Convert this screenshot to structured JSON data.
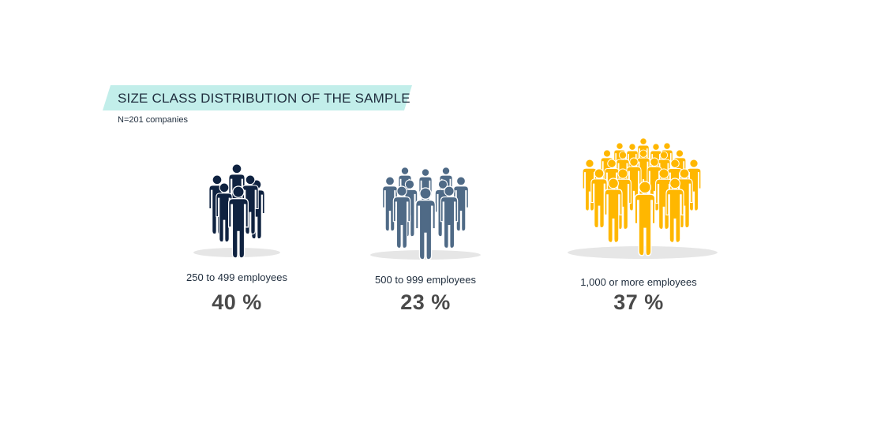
{
  "title": "SIZE CLASS DISTRIBUTION OF THE SAMPLE",
  "subtitle": "N=201 companies",
  "title_banner_color": "#c2eeea",
  "chart_data": {
    "type": "pictograph",
    "title": "SIZE CLASS DISTRIBUTION OF THE SAMPLE",
    "subtitle": "N=201 companies",
    "categories": [
      "250 to 499 employees",
      "500 to 999 employees",
      "1,000 or more employees"
    ],
    "values": [
      40,
      23,
      37
    ],
    "value_labels": [
      "40 %",
      "23 %",
      "37 %"
    ],
    "unit": "%",
    "colors": [
      "#0f2240",
      "#4f6a86",
      "#ffb700"
    ],
    "icon": "person-group-icon"
  }
}
